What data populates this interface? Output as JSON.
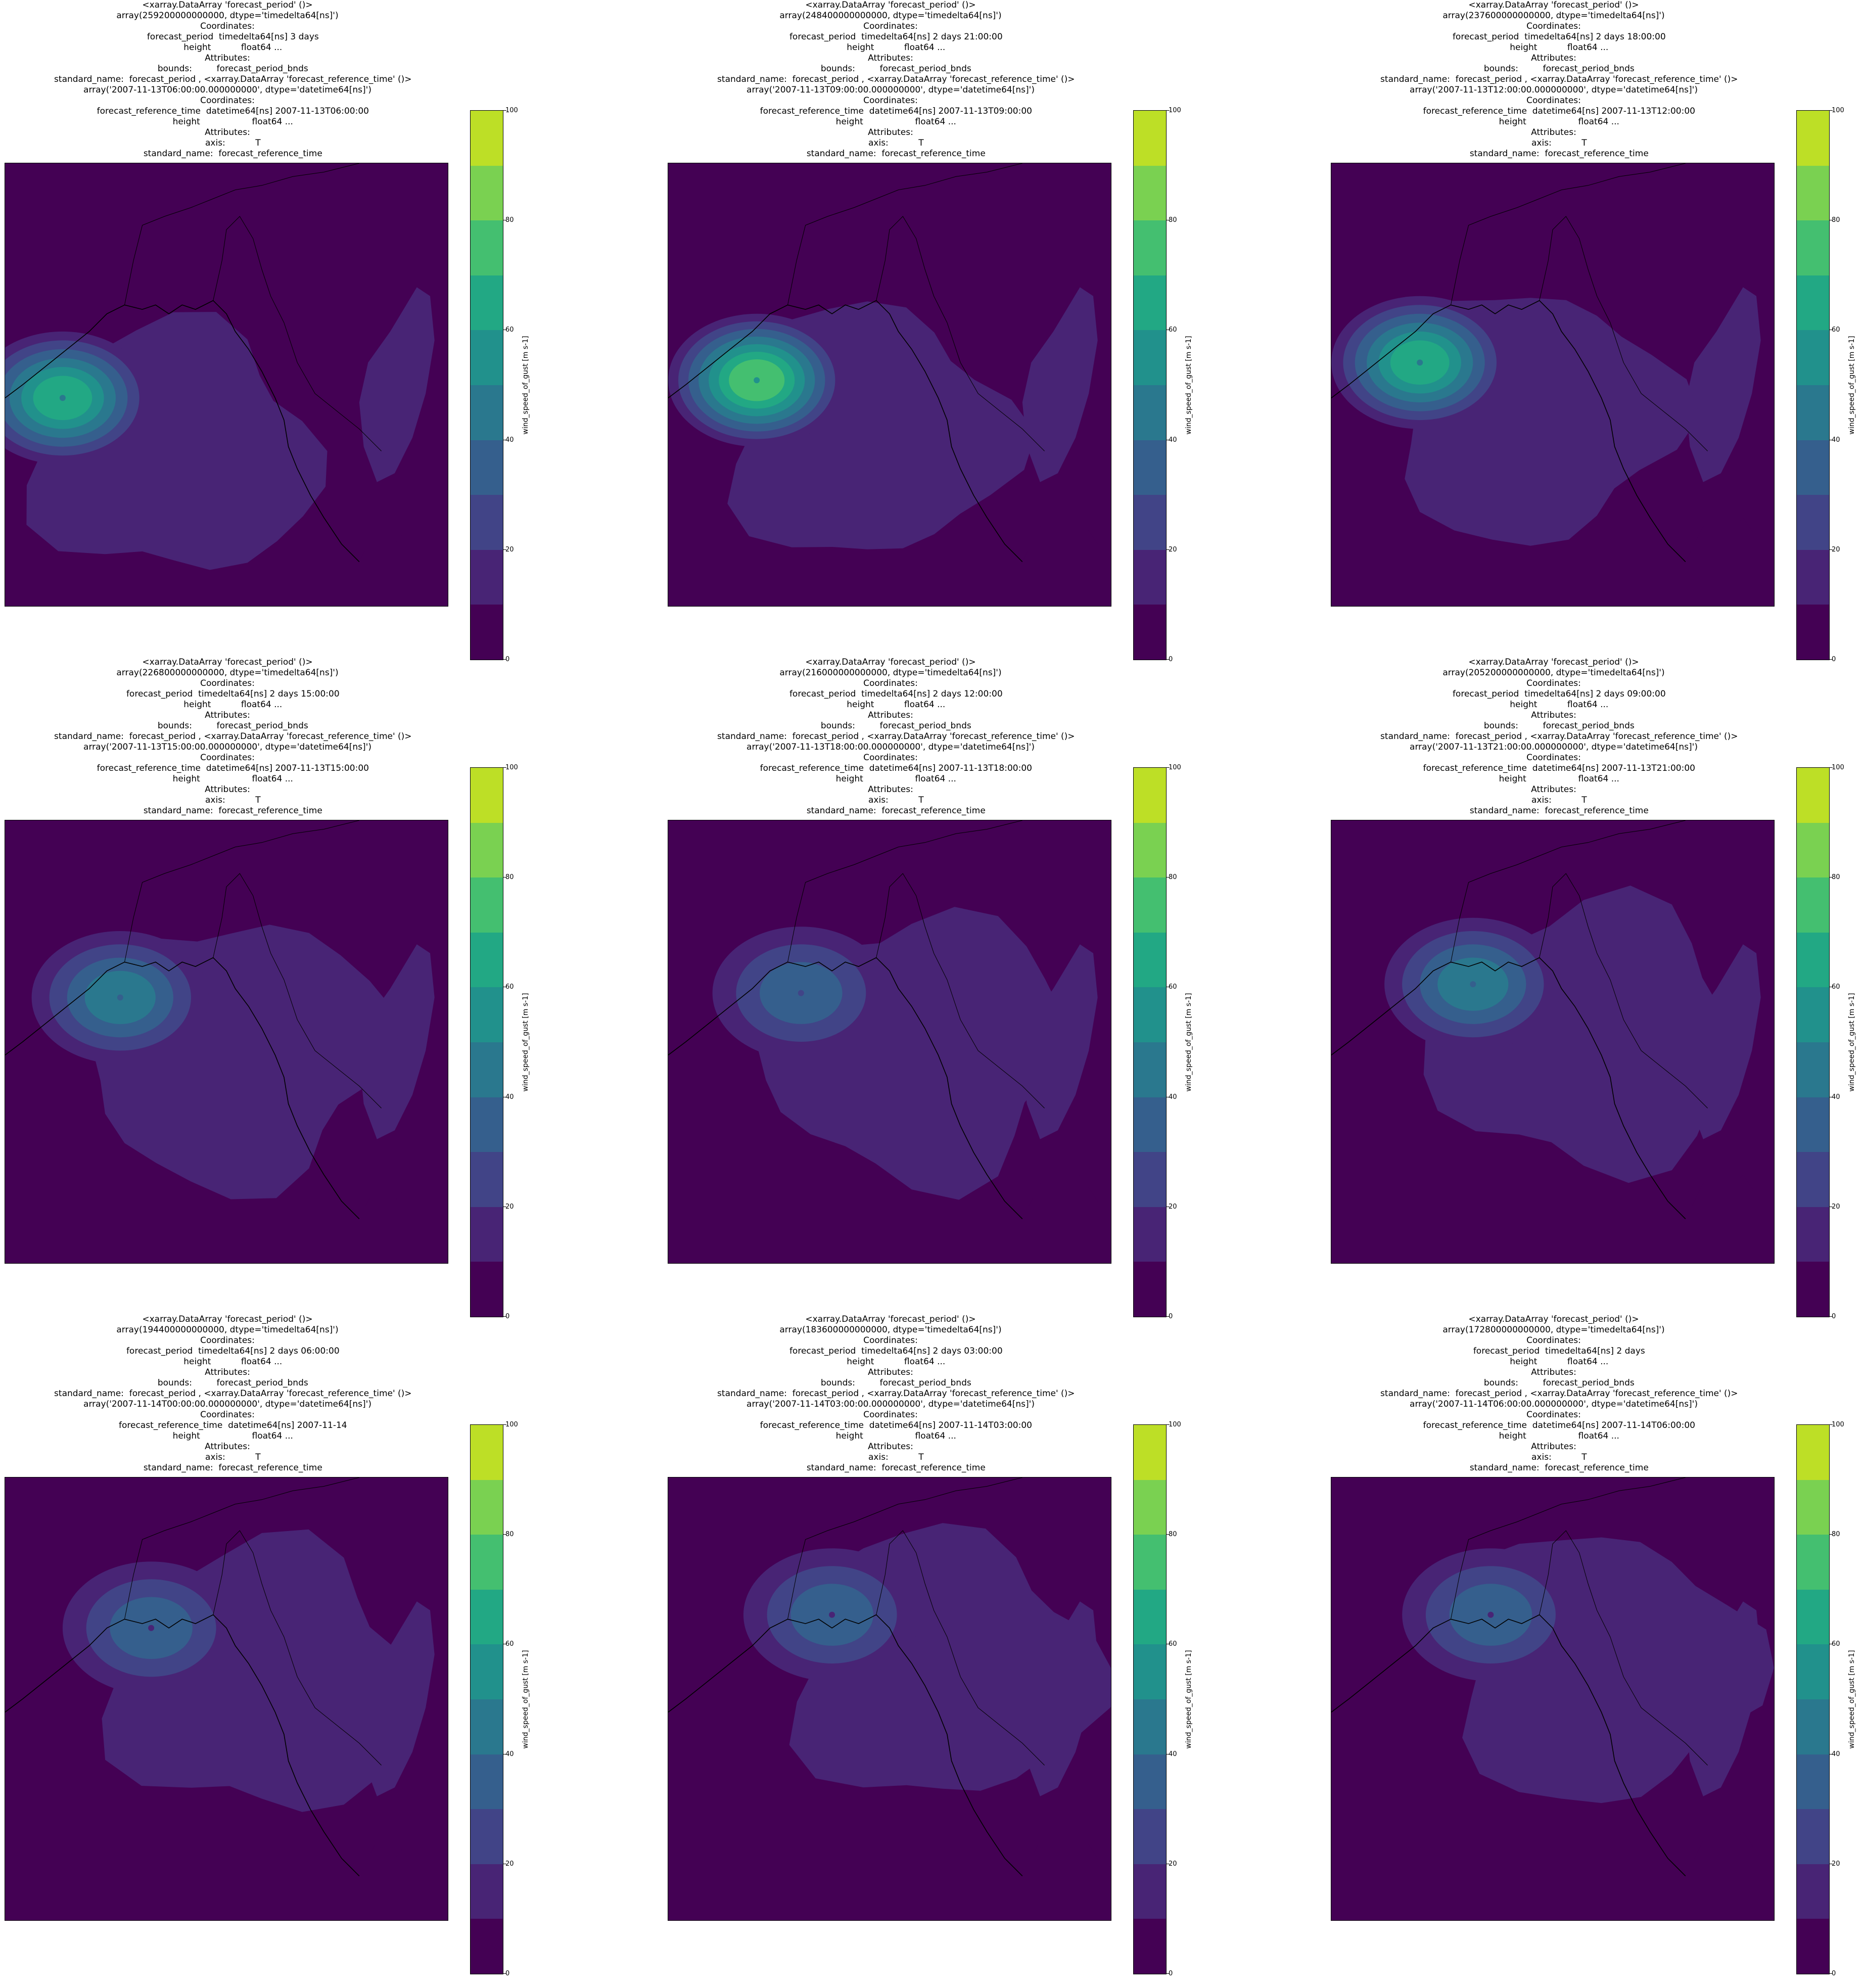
{
  "colorbar": {
    "label": "wind_speed_of_gust [m s-1]",
    "ticks": [
      "0",
      "20",
      "40",
      "60",
      "80",
      "100"
    ],
    "tick_values": [
      0,
      20,
      40,
      60,
      80,
      100
    ],
    "levels": [
      0,
      10,
      20,
      30,
      40,
      50,
      60,
      70,
      80,
      90,
      100
    ],
    "colors": [
      "#440154",
      "#482475",
      "#414487",
      "#355f8d",
      "#2a788e",
      "#21918c",
      "#22a884",
      "#44bf70",
      "#7ad151",
      "#bddf26",
      "#fde725"
    ]
  },
  "chart_data": [
    {
      "type": "heatmap",
      "title_lines": [
        "<xarray.DataArray 'forecast_period' ()>",
        "array(259200000000000, dtype='timedelta64[ns]')",
        "Coordinates:",
        "    forecast_period  timedelta64[ns] 3 days",
        "    height           float64 ...",
        "Attributes:",
        "    bounds:         forecast_period_bnds",
        "    standard_name:  forecast_period , <xarray.DataArray 'forecast_reference_time' ()>",
        "array('2007-11-13T06:00:00.000000000', dtype='datetime64[ns]')",
        "Coordinates:",
        "    forecast_reference_time  datetime64[ns] 2007-11-13T06:00:00",
        "    height                   float64 ...",
        "Attributes:",
        "    axis:           T",
        "    standard_name:  forecast_reference_time"
      ],
      "cyclone_center": [
        0.13,
        0.53
      ],
      "max_gust": 62
    },
    {
      "type": "heatmap",
      "title_lines": [
        "<xarray.DataArray 'forecast_period' ()>",
        "array(248400000000000, dtype='timedelta64[ns]')",
        "Coordinates:",
        "    forecast_period  timedelta64[ns] 2 days 21:00:00",
        "    height           float64 ...",
        "Attributes:",
        "    bounds:         forecast_period_bnds",
        "    standard_name:  forecast_period , <xarray.DataArray 'forecast_reference_time' ()>",
        "array('2007-11-13T09:00:00.000000000', dtype='datetime64[ns]')",
        "Coordinates:",
        "    forecast_reference_time  datetime64[ns] 2007-11-13T09:00:00",
        "    height                   float64 ...",
        "Attributes:",
        "    axis:           T",
        "    standard_name:  forecast_reference_time"
      ],
      "cyclone_center": [
        0.2,
        0.49
      ],
      "max_gust": 75
    },
    {
      "type": "heatmap",
      "title_lines": [
        "<xarray.DataArray 'forecast_period' ()>",
        "array(237600000000000, dtype='timedelta64[ns]')",
        "Coordinates:",
        "    forecast_period  timedelta64[ns] 2 days 18:00:00",
        "    height           float64 ...",
        "Attributes:",
        "    bounds:         forecast_period_bnds",
        "    standard_name:  forecast_period , <xarray.DataArray 'forecast_reference_time' ()>",
        "array('2007-11-13T12:00:00.000000000', dtype='datetime64[ns]')",
        "Coordinates:",
        "    forecast_reference_time  datetime64[ns] 2007-11-13T12:00:00",
        "    height                   float64 ...",
        "Attributes:",
        "    axis:           T",
        "    standard_name:  forecast_reference_time"
      ],
      "cyclone_center": [
        0.2,
        0.45
      ],
      "max_gust": 65
    },
    {
      "type": "heatmap",
      "title_lines": [
        "<xarray.DataArray 'forecast_period' ()>",
        "array(226800000000000, dtype='timedelta64[ns]')",
        "Coordinates:",
        "    forecast_period  timedelta64[ns] 2 days 15:00:00",
        "    height           float64 ...",
        "Attributes:",
        "    bounds:         forecast_period_bnds",
        "    standard_name:  forecast_period , <xarray.DataArray 'forecast_reference_time' ()>",
        "array('2007-11-13T15:00:00.000000000', dtype='datetime64[ns]')",
        "Coordinates:",
        "    forecast_reference_time  datetime64[ns] 2007-11-13T15:00:00",
        "    height                   float64 ...",
        "Attributes:",
        "    axis:           T",
        "    standard_name:  forecast_reference_time"
      ],
      "cyclone_center": [
        0.26,
        0.4
      ],
      "max_gust": 50
    },
    {
      "type": "heatmap",
      "title_lines": [
        "<xarray.DataArray 'forecast_period' ()>",
        "array(216000000000000, dtype='timedelta64[ns]')",
        "Coordinates:",
        "    forecast_period  timedelta64[ns] 2 days 12:00:00",
        "    height           float64 ...",
        "Attributes:",
        "    bounds:         forecast_period_bnds",
        "    standard_name:  forecast_period , <xarray.DataArray 'forecast_reference_time' ()>",
        "array('2007-11-13T18:00:00.000000000', dtype='datetime64[ns]')",
        "Coordinates:",
        "    forecast_reference_time  datetime64[ns] 2007-11-13T18:00:00",
        "    height                   float64 ...",
        "Attributes:",
        "    axis:           T",
        "    standard_name:  forecast_reference_time"
      ],
      "cyclone_center": [
        0.3,
        0.39
      ],
      "max_gust": 40
    },
    {
      "type": "heatmap",
      "title_lines": [
        "<xarray.DataArray 'forecast_period' ()>",
        "array(205200000000000, dtype='timedelta64[ns]')",
        "Coordinates:",
        "    forecast_period  timedelta64[ns] 2 days 09:00:00",
        "    height           float64 ...",
        "Attributes:",
        "    bounds:         forecast_period_bnds",
        "    standard_name:  forecast_period , <xarray.DataArray 'forecast_reference_time' ()>",
        "array('2007-11-13T21:00:00.000000000', dtype='datetime64[ns]')",
        "Coordinates:",
        "    forecast_reference_time  datetime64[ns] 2007-11-13T21:00:00",
        "    height                   float64 ...",
        "Attributes:",
        "    axis:           T",
        "    standard_name:  forecast_reference_time"
      ],
      "cyclone_center": [
        0.32,
        0.37
      ],
      "max_gust": 50
    },
    {
      "type": "heatmap",
      "title_lines": [
        "<xarray.DataArray 'forecast_period' ()>",
        "array(194400000000000, dtype='timedelta64[ns]')",
        "Coordinates:",
        "    forecast_period  timedelta64[ns] 2 days 06:00:00",
        "    height           float64 ...",
        "Attributes:",
        "    bounds:         forecast_period_bnds",
        "    standard_name:  forecast_period , <xarray.DataArray 'forecast_reference_time' ()>",
        "array('2007-11-14T00:00:00.000000000', dtype='datetime64[ns]')",
        "Coordinates:",
        "    forecast_reference_time  datetime64[ns] 2007-11-14",
        "    height                   float64 ...",
        "Attributes:",
        "    axis:           T",
        "    standard_name:  forecast_reference_time"
      ],
      "cyclone_center": [
        0.33,
        0.34
      ],
      "max_gust": 38
    },
    {
      "type": "heatmap",
      "title_lines": [
        "<xarray.DataArray 'forecast_period' ()>",
        "array(183600000000000, dtype='timedelta64[ns]')",
        "Coordinates:",
        "    forecast_period  timedelta64[ns] 2 days 03:00:00",
        "    height           float64 ...",
        "Attributes:",
        "    bounds:         forecast_period_bnds",
        "    standard_name:  forecast_period , <xarray.DataArray 'forecast_reference_time' ()>",
        "array('2007-11-14T03:00:00.000000000', dtype='datetime64[ns]')",
        "Coordinates:",
        "    forecast_reference_time  datetime64[ns] 2007-11-14T03:00:00",
        "    height                   float64 ...",
        "Attributes:",
        "    axis:           T",
        "    standard_name:  forecast_reference_time"
      ],
      "cyclone_center": [
        0.37,
        0.31
      ],
      "max_gust": 36
    },
    {
      "type": "heatmap",
      "title_lines": [
        "<xarray.DataArray 'forecast_period' ()>",
        "array(172800000000000, dtype='timedelta64[ns]')",
        "Coordinates:",
        "    forecast_period  timedelta64[ns] 2 days",
        "    height           float64 ...",
        "Attributes:",
        "    bounds:         forecast_period_bnds",
        "    standard_name:  forecast_period , <xarray.DataArray 'forecast_reference_time' ()>",
        "array('2007-11-14T06:00:00.000000000', dtype='datetime64[ns]')",
        "Coordinates:",
        "    forecast_reference_time  datetime64[ns] 2007-11-14T06:00:00",
        "    height                   float64 ...",
        "Attributes:",
        "    axis:           T",
        "    standard_name:  forecast_reference_time"
      ],
      "cyclone_center": [
        0.36,
        0.31
      ],
      "max_gust": 34
    }
  ]
}
